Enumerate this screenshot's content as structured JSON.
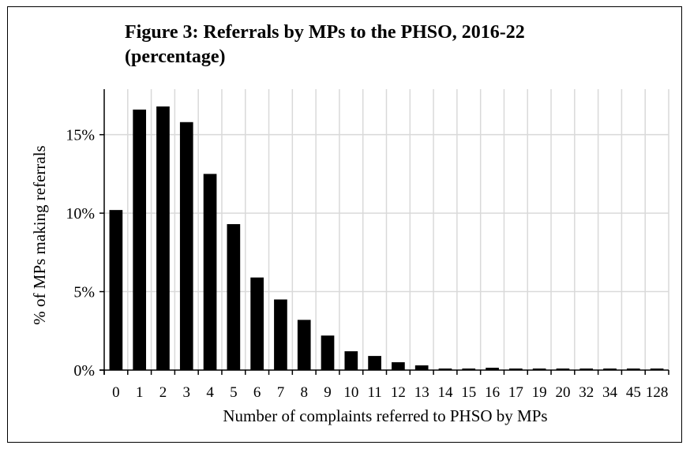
{
  "chart_data": {
    "type": "bar",
    "title_line1": "Figure 3: Referrals by MPs to the PHSO, 2016-22",
    "title_line2": "(percentage)",
    "xlabel": "Number of complaints referred to PHSO by MPs",
    "ylabel": "% of MPs making referrals",
    "categories": [
      "0",
      "1",
      "2",
      "3",
      "4",
      "5",
      "6",
      "7",
      "8",
      "9",
      "10",
      "11",
      "12",
      "13",
      "14",
      "15",
      "16",
      "17",
      "19",
      "20",
      "32",
      "34",
      "45",
      "128"
    ],
    "values": [
      10.2,
      16.6,
      16.8,
      15.8,
      12.5,
      9.3,
      5.9,
      4.5,
      3.2,
      2.2,
      1.2,
      0.9,
      0.5,
      0.3,
      0.1,
      0.1,
      0.15,
      0.1,
      0.1,
      0.1,
      0.1,
      0.1,
      0.1,
      0.1
    ],
    "ylim": [
      0,
      17.9
    ],
    "yticks": [
      0,
      5,
      10,
      15
    ],
    "ytick_labels": [
      "0%",
      "5%",
      "10%",
      "15%"
    ],
    "grid": true,
    "bar_color": "#000000",
    "grid_color": "#d9d9d9"
  }
}
